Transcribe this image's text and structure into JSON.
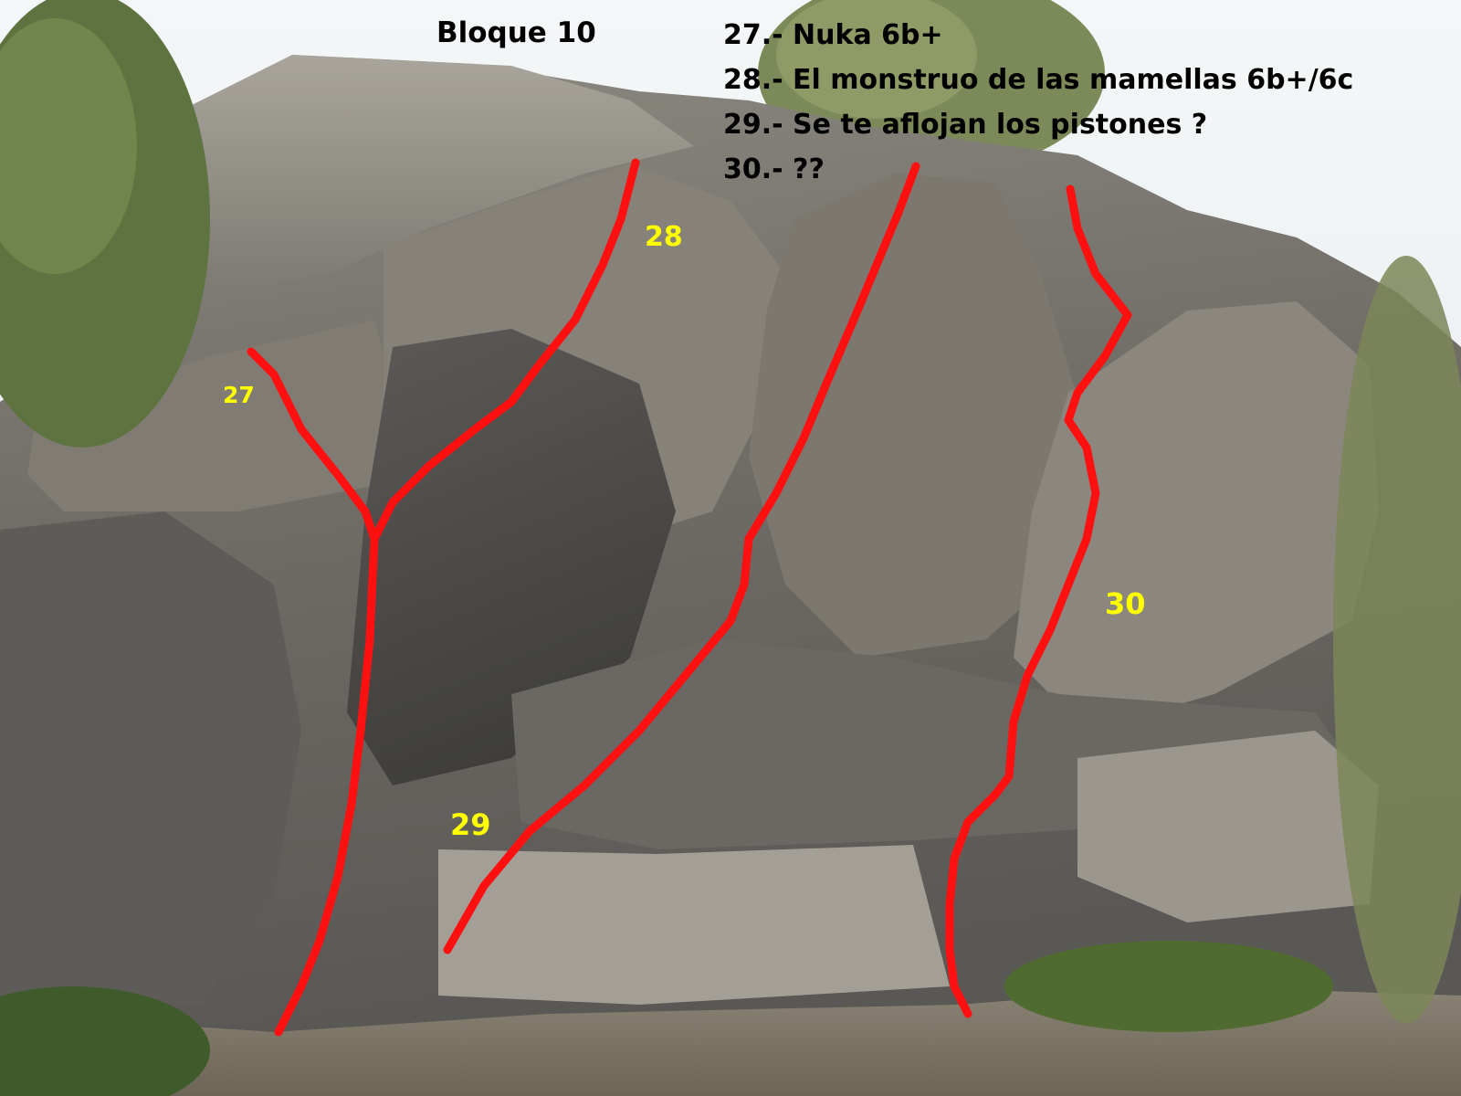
{
  "topo": {
    "block_title": "Bloque 10",
    "routes": [
      {
        "label": "27.- Nuka  6b+",
        "marker": "27"
      },
      {
        "label": "28.- El monstruo de las mamellas  6b+/6c",
        "marker": "28"
      },
      {
        "label": "29.- Se te aflojan los pistones  ?",
        "marker": "29"
      },
      {
        "label": "30.- ??",
        "marker": "30"
      }
    ],
    "colors": {
      "route_line": "#ff1010",
      "route_number": "#ffff00",
      "legend_text": "#000000"
    }
  }
}
